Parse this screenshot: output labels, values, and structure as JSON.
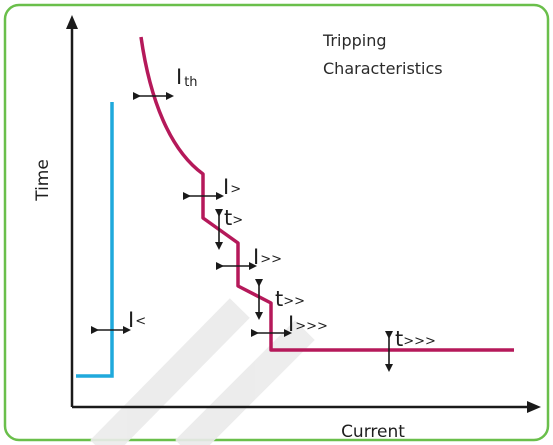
{
  "title": {
    "line1": "Tripping",
    "line2": "Characteristics"
  },
  "axes": {
    "x_label": "Current",
    "y_label": "Time"
  },
  "settings": {
    "ith": {
      "base": "I",
      "sub": "th"
    },
    "i_gt": {
      "base": "I",
      "sub": ">"
    },
    "t_gt": {
      "base": "t",
      "sub": ">"
    },
    "i_gt2": {
      "base": "I",
      "sub": ">>"
    },
    "t_gt2": {
      "base": "t",
      "sub": ">>"
    },
    "i_gt3": {
      "base": "I",
      "sub": ">>>"
    },
    "t_gt3": {
      "base": "t",
      "sub": ">>>"
    },
    "i_lt": {
      "base": "I",
      "sub": "<"
    }
  },
  "colors": {
    "frame": "#6abf4b",
    "overcurrent_curve": "#b5195a",
    "undercurrent_curve": "#1fa9dc",
    "axes": "#1a1a1a",
    "arrows": "#1a1a1a",
    "watermark": "#ebebeb"
  }
}
